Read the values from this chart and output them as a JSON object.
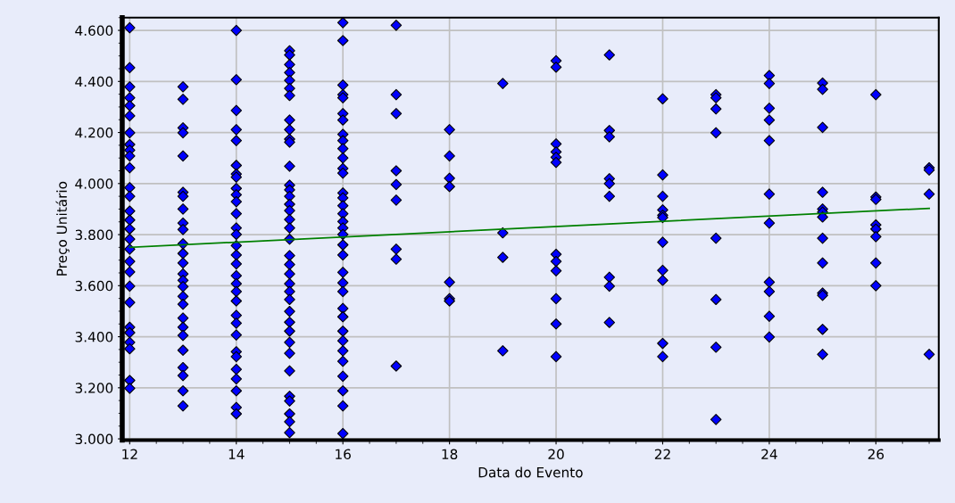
{
  "chart_data": {
    "type": "scatter",
    "xlabel": "Data do Evento",
    "ylabel": "Preço Unitário",
    "xlim": [
      11.86,
      27.18
    ],
    "xticks": [
      12,
      14,
      16,
      18,
      20,
      22,
      24,
      26
    ],
    "ylim": [
      2.995,
      4.65
    ],
    "yticks": [
      {
        "value": 3.0,
        "label": "3.000"
      },
      {
        "value": 3.2,
        "label": "3.200"
      },
      {
        "value": 3.4,
        "label": "3.400"
      },
      {
        "value": 3.6,
        "label": "3.600"
      },
      {
        "value": 3.8,
        "label": "3.800"
      },
      {
        "value": 4.0,
        "label": "4.000"
      },
      {
        "value": 4.2,
        "label": "4.200"
      },
      {
        "value": 4.4,
        "label": "4.400"
      },
      {
        "value": 4.6,
        "label": "4.600"
      }
    ],
    "grid": true,
    "marker": "diamond",
    "series": [
      {
        "color": "#0000ff",
        "x": [
          12,
          12,
          12,
          12,
          12,
          12,
          12,
          12,
          12,
          12,
          12,
          12,
          12,
          12,
          12,
          12,
          12,
          12,
          12,
          12,
          12,
          12,
          12,
          12,
          12,
          12,
          12,
          12,
          13,
          13,
          13,
          13,
          13,
          13,
          13,
          13,
          13,
          13,
          13,
          13,
          13,
          13,
          13,
          13,
          13,
          13,
          13,
          13,
          13,
          13,
          13,
          13,
          13,
          13,
          14,
          14,
          14,
          14,
          14,
          14,
          14,
          14,
          14,
          14,
          14,
          14,
          14,
          14,
          14,
          14,
          14,
          14,
          14,
          14,
          14,
          14,
          14,
          14,
          14,
          14,
          14,
          14,
          14,
          14,
          14,
          15,
          15,
          15,
          15,
          15,
          15,
          15,
          15,
          15,
          15,
          15,
          15,
          15,
          15,
          15,
          15,
          15,
          15,
          15,
          15,
          15,
          15,
          15,
          15,
          15,
          15,
          15,
          15,
          15,
          15,
          15,
          15,
          15,
          15,
          15,
          15,
          15,
          16,
          16,
          16,
          16,
          16,
          16,
          16,
          16,
          16,
          16,
          16,
          16,
          16,
          16,
          16,
          16,
          16,
          16,
          16,
          16,
          16,
          16,
          16,
          16,
          16,
          16,
          16,
          16,
          16,
          16,
          16,
          16,
          16,
          16,
          16,
          17,
          17,
          17,
          17,
          17,
          17,
          17,
          17,
          17,
          18,
          18,
          18,
          18,
          18,
          18,
          18,
          19,
          19,
          19,
          19,
          20,
          20,
          20,
          20,
          20,
          20,
          20,
          20,
          20,
          20,
          20,
          20,
          21,
          21,
          21,
          21,
          21,
          21,
          21,
          21,
          21,
          22,
          22,
          22,
          22,
          22,
          22,
          22,
          22,
          22,
          22,
          22,
          23,
          23,
          23,
          23,
          23,
          23,
          23,
          23,
          24,
          24,
          24,
          24,
          24,
          24,
          24,
          24,
          24,
          24,
          24,
          25,
          25,
          25,
          25,
          25,
          25,
          25,
          25,
          25,
          25,
          25,
          25,
          25,
          26,
          26,
          26,
          26,
          26,
          26,
          26,
          26,
          27,
          27,
          27,
          27
        ],
        "values": [
          4.61,
          4.454,
          4.379,
          4.336,
          4.305,
          4.265,
          4.199,
          4.153,
          4.131,
          4.108,
          4.062,
          3.984,
          3.95,
          3.892,
          3.857,
          3.822,
          3.782,
          3.743,
          3.695,
          3.654,
          3.598,
          3.534,
          3.437,
          3.416,
          3.378,
          3.353,
          3.229,
          3.198,
          4.379,
          4.33,
          4.218,
          4.199,
          4.108,
          3.966,
          3.95,
          3.9,
          3.845,
          3.82,
          3.764,
          3.726,
          3.689,
          3.646,
          3.621,
          3.596,
          3.558,
          3.527,
          3.473,
          3.437,
          3.405,
          3.347,
          3.279,
          3.248,
          3.188,
          3.129,
          4.6,
          4.407,
          4.286,
          4.211,
          4.168,
          4.071,
          4.037,
          4.025,
          3.981,
          3.956,
          3.929,
          3.882,
          3.826,
          3.801,
          3.757,
          3.72,
          3.685,
          3.639,
          3.608,
          3.577,
          3.54,
          3.484,
          3.453,
          3.407,
          3.341,
          3.322,
          3.272,
          3.235,
          3.188,
          3.123,
          3.098,
          4.52,
          4.504,
          4.466,
          4.435,
          4.404,
          4.373,
          4.345,
          4.249,
          4.211,
          4.174,
          4.162,
          4.068,
          3.994,
          3.975,
          3.95,
          3.919,
          3.894,
          3.859,
          3.826,
          3.782,
          3.718,
          3.683,
          3.646,
          3.608,
          3.577,
          3.546,
          3.499,
          3.457,
          3.422,
          3.378,
          3.335,
          3.266,
          3.167,
          3.148,
          3.098,
          3.067,
          3.024,
          4.63,
          4.56,
          4.386,
          4.348,
          4.336,
          4.274,
          4.249,
          4.193,
          4.168,
          4.137,
          4.1,
          4.059,
          4.041,
          3.963,
          3.944,
          3.913,
          3.882,
          3.851,
          3.826,
          3.801,
          3.76,
          3.72,
          3.652,
          3.611,
          3.577,
          3.511,
          3.478,
          3.422,
          3.384,
          3.345,
          3.304,
          3.245,
          3.188,
          3.129,
          3.021,
          4.62,
          4.348,
          4.274,
          4.05,
          3.996,
          3.935,
          3.743,
          3.704,
          3.285,
          4.211,
          4.108,
          4.021,
          3.988,
          3.614,
          3.549,
          3.54,
          4.392,
          3.807,
          3.711,
          3.345,
          4.481,
          4.456,
          4.155,
          4.124,
          4.103,
          4.083,
          3.723,
          3.695,
          3.658,
          3.549,
          3.45,
          3.322,
          4.504,
          4.208,
          4.183,
          4.019,
          4.0,
          3.95,
          3.633,
          3.598,
          3.456,
          4.332,
          4.034,
          3.95,
          3.897,
          3.876,
          3.867,
          3.77,
          3.66,
          3.621,
          3.374,
          3.322,
          4.348,
          4.336,
          4.292,
          4.199,
          3.786,
          3.546,
          3.359,
          3.076,
          4.423,
          4.392,
          4.295,
          4.249,
          4.168,
          3.959,
          3.845,
          3.614,
          3.577,
          3.48,
          3.399,
          4.394,
          4.369,
          4.22,
          3.966,
          3.9,
          3.888,
          3.869,
          3.786,
          3.689,
          3.571,
          3.562,
          3.429,
          3.331,
          4.348,
          3.947,
          3.938,
          3.838,
          3.822,
          3.792,
          3.689,
          3.6,
          4.062,
          4.053,
          3.959,
          3.331
        ]
      },
      {
        "type": "line",
        "color": "#008000",
        "x": [
          12,
          27
        ],
        "values": [
          3.75,
          3.903
        ],
        "marker": "none"
      }
    ]
  }
}
